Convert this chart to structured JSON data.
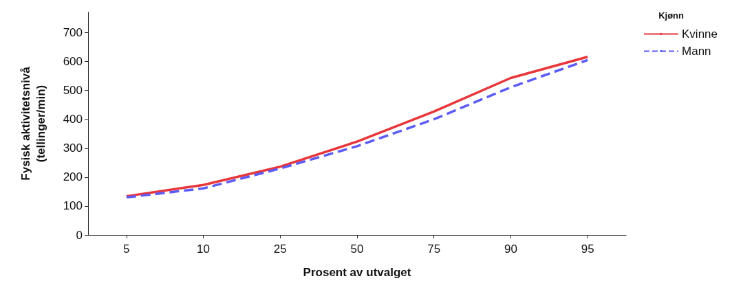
{
  "chart_data": {
    "type": "line",
    "xlabel": "Prosent av utvalget",
    "ylabel": "Fysisk aktivitetsnivå\n(tellinger/min)",
    "legend_title": "Kjønn",
    "legend": "top right",
    "grid": false,
    "marker": "none",
    "categories": [
      "5",
      "10",
      "25",
      "50",
      "75",
      "90",
      "95"
    ],
    "ylim": [
      0,
      770
    ],
    "yticks": [
      0,
      100,
      200,
      300,
      400,
      500,
      600,
      700
    ],
    "series": [
      {
        "name": "Kvinne",
        "color": "#e8363a",
        "line_style": "solid",
        "values": [
          134,
          173,
          236,
          323,
          427,
          543,
          616
        ]
      },
      {
        "name": "Mann",
        "color": "#5b5bf5",
        "line_style": "dashed",
        "values": [
          130,
          161,
          230,
          307,
          400,
          511,
          605
        ]
      }
    ]
  }
}
